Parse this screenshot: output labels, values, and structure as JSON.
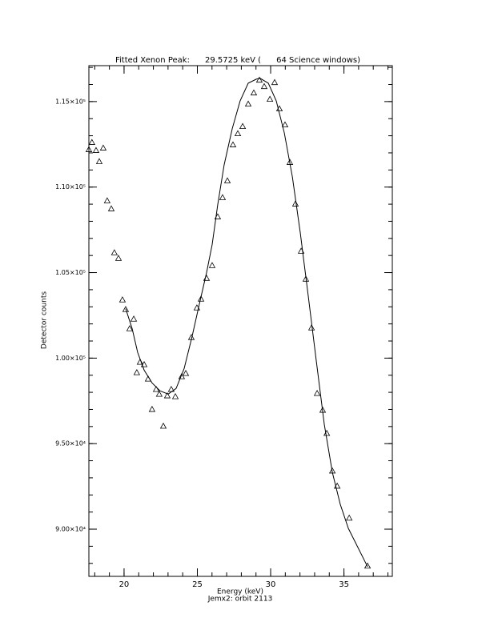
{
  "chart_data": {
    "type": "scatter",
    "title": "Fitted Xenon Peak:      29.5725 keV (      64 Science windows)",
    "xlabel": "Energy (keV)",
    "subtitle": "Jemx2: orbit 2113",
    "ylabel": "Detector counts",
    "xlim": [
      17.6,
      38.3
    ],
    "ylim": [
      87240,
      117100
    ],
    "xticks": [
      20,
      25,
      30,
      35
    ],
    "yticks": [
      {
        "value": 90000,
        "label": "9.00×10⁴"
      },
      {
        "value": 95000,
        "label": "9.50×10⁴"
      },
      {
        "value": 100000,
        "label": "1.00×10⁵"
      },
      {
        "value": 105000,
        "label": "1.05×10⁵"
      },
      {
        "value": 110000,
        "label": "1.10×10⁵"
      },
      {
        "value": 115000,
        "label": "1.15×10⁵"
      }
    ],
    "minor_intervals": 5,
    "series": [
      {
        "type": "scatter",
        "marker": "triangle",
        "color": "#000000",
        "x": [
          17.6,
          17.81,
          18.09,
          18.31,
          18.58,
          18.85,
          19.13,
          19.34,
          19.62,
          19.89,
          20.11,
          20.38,
          20.66,
          20.87,
          21.09,
          21.37,
          21.64,
          21.91,
          22.19,
          22.4,
          22.68,
          22.95,
          23.22,
          23.5,
          23.93,
          24.21,
          24.59,
          24.97,
          25.25,
          25.63,
          26.01,
          26.39,
          26.72,
          27.05,
          27.43,
          27.76,
          28.09,
          28.47,
          28.85,
          29.23,
          29.56,
          29.95,
          30.27,
          30.6,
          30.98,
          31.31,
          31.69,
          32.08,
          32.4,
          32.79,
          33.17,
          33.55,
          33.83,
          34.21,
          34.54,
          35.36,
          36.61
        ],
        "values": [
          112197,
          112617,
          112150,
          111496,
          112290,
          109206,
          108739,
          106169,
          105841,
          103412,
          102851,
          101729,
          102290,
          99159,
          99767,
          99626,
          98785,
          97010,
          98178,
          97897,
          96028,
          97804,
          98178,
          97757,
          98925,
          99112,
          101215,
          102944,
          103458,
          104673,
          105421,
          108271,
          109393,
          110374,
          112477,
          113131,
          113552,
          114860,
          115514,
          116262,
          115888,
          115141,
          116122,
          114580,
          113645,
          111449,
          109019,
          106262,
          104626,
          101776,
          97944,
          96963,
          95608,
          93411,
          92523,
          90654,
          87850
        ]
      },
      {
        "type": "line",
        "color": "#000000",
        "x": [
          20.11,
          20.55,
          20.93,
          21.37,
          21.91,
          22.46,
          23.01,
          23.55,
          24.1,
          24.64,
          25.19,
          25.63,
          26.01,
          26.39,
          26.83,
          27.38,
          27.92,
          28.47,
          29.02,
          29.29,
          29.84,
          30.38,
          30.93,
          31.48,
          32.02,
          32.57,
          33.11,
          33.66,
          34.21,
          34.75,
          35.3,
          36.61
        ],
        "values": [
          102897,
          101729,
          100327,
          99299,
          98552,
          98084,
          97897,
          98224,
          99393,
          101262,
          103365,
          105000,
          106636,
          108972,
          111309,
          113412,
          115047,
          116075,
          116309,
          116356,
          116075,
          115047,
          113178,
          110608,
          107337,
          103598,
          99860,
          96122,
          93318,
          91449,
          90047,
          87804
        ]
      }
    ]
  }
}
